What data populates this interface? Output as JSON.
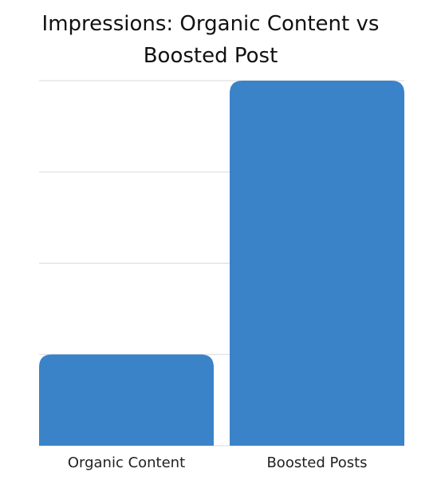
{
  "chart_data": {
    "type": "bar",
    "title": "Impressions: Organic Content vs Boosted Post",
    "categories": [
      "Organic Content",
      "Boosted Posts"
    ],
    "values": [
      1,
      4
    ],
    "color": "#3a83c9",
    "ylim": [
      0,
      4
    ],
    "yticks": [
      0,
      1,
      2,
      3,
      4
    ],
    "grid": true
  }
}
